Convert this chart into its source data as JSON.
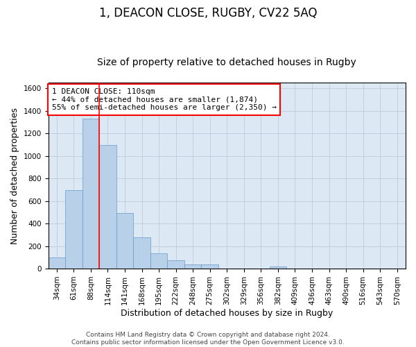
{
  "title1": "1, DEACON CLOSE, RUGBY, CV22 5AQ",
  "title2": "Size of property relative to detached houses in Rugby",
  "xlabel": "Distribution of detached houses by size in Rugby",
  "ylabel": "Number of detached properties",
  "bar_color": "#b8d0e8",
  "bar_edge_color": "#6699cc",
  "grid_color": "#bbccdd",
  "background_color": "#dce9f5",
  "vline_color": "red",
  "annotation_text": "1 DEACON CLOSE: 110sqm\n← 44% of detached houses are smaller (1,874)\n55% of semi-detached houses are larger (2,350) →",
  "annotation_box_color": "white",
  "annotation_box_edge": "red",
  "footer_text": "Contains HM Land Registry data © Crown copyright and database right 2024.\nContains public sector information licensed under the Open Government Licence v3.0.",
  "bins": [
    "34sqm",
    "61sqm",
    "88sqm",
    "114sqm",
    "141sqm",
    "168sqm",
    "195sqm",
    "222sqm",
    "248sqm",
    "275sqm",
    "302sqm",
    "329sqm",
    "356sqm",
    "382sqm",
    "409sqm",
    "436sqm",
    "463sqm",
    "490sqm",
    "516sqm",
    "543sqm",
    "570sqm"
  ],
  "values": [
    97,
    697,
    1330,
    1097,
    493,
    277,
    137,
    73,
    35,
    35,
    0,
    0,
    0,
    17,
    0,
    0,
    0,
    0,
    0,
    0,
    0
  ],
  "ylim": [
    0,
    1650
  ],
  "yticks": [
    0,
    200,
    400,
    600,
    800,
    1000,
    1200,
    1400,
    1600
  ],
  "vline_bin_index": 3,
  "title1_fontsize": 12,
  "title2_fontsize": 10,
  "xlabel_fontsize": 9,
  "ylabel_fontsize": 9,
  "tick_fontsize": 7.5,
  "annotation_fontsize": 8,
  "footer_fontsize": 6.5
}
